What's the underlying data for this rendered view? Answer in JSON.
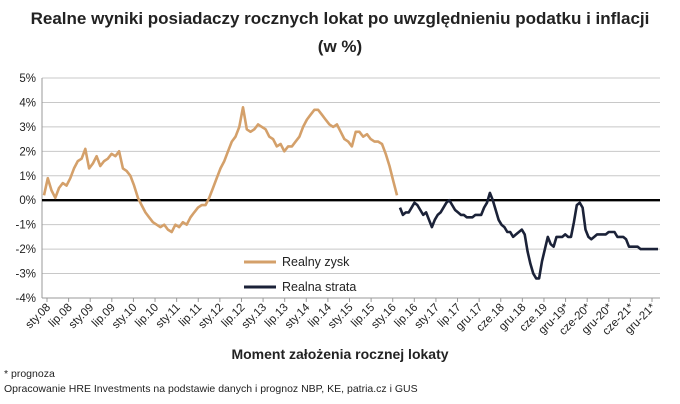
{
  "chart_data": {
    "type": "line",
    "title_line1": "Realne wyniki posiadaczy rocznych lokat po uwzględnieniu podatku i inflacji",
    "title_line2": "(w %)",
    "xlabel": "Moment założenia rocznej lokaty",
    "ylabel": "",
    "ylim": [
      -4,
      5
    ],
    "yticks": [
      5,
      4,
      3,
      2,
      1,
      0,
      -1,
      -2,
      -3,
      -4
    ],
    "ytick_labels": [
      "5%",
      "4%",
      "3%",
      "2%",
      "1%",
      "0%",
      "-1%",
      "-2%",
      "-3%",
      "-4%"
    ],
    "xtick_labels": [
      "sty.08",
      "lip.08",
      "sty.09",
      "lip.09",
      "sty.10",
      "lip.10",
      "sty.11",
      "lip.11",
      "sty.12",
      "lip.12",
      "sty.13",
      "lip.13",
      "sty.14",
      "lip.14",
      "sty.15",
      "lip.15",
      "sty.16",
      "lip.16",
      "sty.17",
      "lip.17",
      "gru.17",
      "cze.18",
      "gru.18",
      "cze.19",
      "gru-19*",
      "cze-20*",
      "gru-20*",
      "cze-21*",
      "gru-21*"
    ],
    "grid": true,
    "legend_position": "bottom-center",
    "series": [
      {
        "name": "Realny zysk",
        "color": "#d4a06a",
        "values": [
          0.2,
          0.9,
          0.4,
          0.1,
          0.5,
          0.7,
          0.6,
          0.9,
          1.3,
          1.6,
          1.7,
          2.1,
          1.3,
          1.5,
          1.8,
          1.4,
          1.6,
          1.7,
          1.9,
          1.8,
          2.0,
          1.3,
          1.2,
          1.0,
          0.6,
          0.1,
          -0.2,
          -0.5,
          -0.7,
          -0.9,
          -1.0,
          -1.1,
          -1.0,
          -1.2,
          -1.3,
          -1.0,
          -1.1,
          -0.9,
          -1.0,
          -0.7,
          -0.5,
          -0.3,
          -0.2,
          -0.2,
          0.1,
          0.5,
          0.9,
          1.3,
          1.6,
          2.0,
          2.4,
          2.6,
          3.0,
          3.8,
          2.9,
          2.8,
          2.9,
          3.1,
          3.0,
          2.9,
          2.6,
          2.5,
          2.2,
          2.3,
          2.0,
          2.2,
          2.2,
          2.4,
          2.6,
          3.0,
          3.3,
          3.5,
          3.7,
          3.7,
          3.5,
          3.3,
          3.1,
          3.0,
          3.1,
          2.8,
          2.5,
          2.4,
          2.2,
          2.8,
          2.8,
          2.6,
          2.7,
          2.5,
          2.4,
          2.4,
          2.3,
          1.9,
          1.4,
          0.8,
          0.2
        ]
      },
      {
        "name": "Realna strata",
        "color": "#1b2238",
        "values": [
          -0.3,
          -0.6,
          -0.5,
          -0.5,
          -0.3,
          -0.1,
          -0.2,
          -0.4,
          -0.6,
          -0.5,
          -0.8,
          -1.1,
          -0.8,
          -0.6,
          -0.5,
          -0.3,
          -0.1,
          0.0,
          -0.2,
          -0.4,
          -0.5,
          -0.6,
          -0.6,
          -0.7,
          -0.7,
          -0.7,
          -0.6,
          -0.6,
          -0.6,
          -0.3,
          -0.1,
          0.3,
          0.0,
          -0.4,
          -0.8,
          -1.0,
          -1.1,
          -1.3,
          -1.3,
          -1.5,
          -1.4,
          -1.3,
          -1.2,
          -1.4,
          -2.1,
          -2.6,
          -3.0,
          -3.2,
          -3.2,
          -2.5,
          -2.0,
          -1.5,
          -1.8,
          -1.9,
          -1.5,
          -1.5,
          -1.5,
          -1.4,
          -1.5,
          -1.5,
          -0.9,
          -0.2,
          -0.1,
          -0.3,
          -1.2,
          -1.5,
          -1.6,
          -1.5,
          -1.4,
          -1.4,
          -1.4,
          -1.4,
          -1.3,
          -1.3,
          -1.3,
          -1.5,
          -1.5,
          -1.5,
          -1.6,
          -1.9,
          -1.9,
          -1.9,
          -1.9,
          -2.0,
          -2.0,
          -2.0,
          -2.0,
          -2.0,
          -2.0,
          -2.0
        ]
      }
    ],
    "zero_line": true
  },
  "legend": [
    {
      "label": "Realny zysk",
      "color": "#d4a06a"
    },
    {
      "label": "Realna strata",
      "color": "#1b2238"
    }
  ],
  "footnote": "* prognoza",
  "source": "Opracowanie HRE Investments na podstawie danych i prognoz NBP, KE, patria.cz i GUS"
}
